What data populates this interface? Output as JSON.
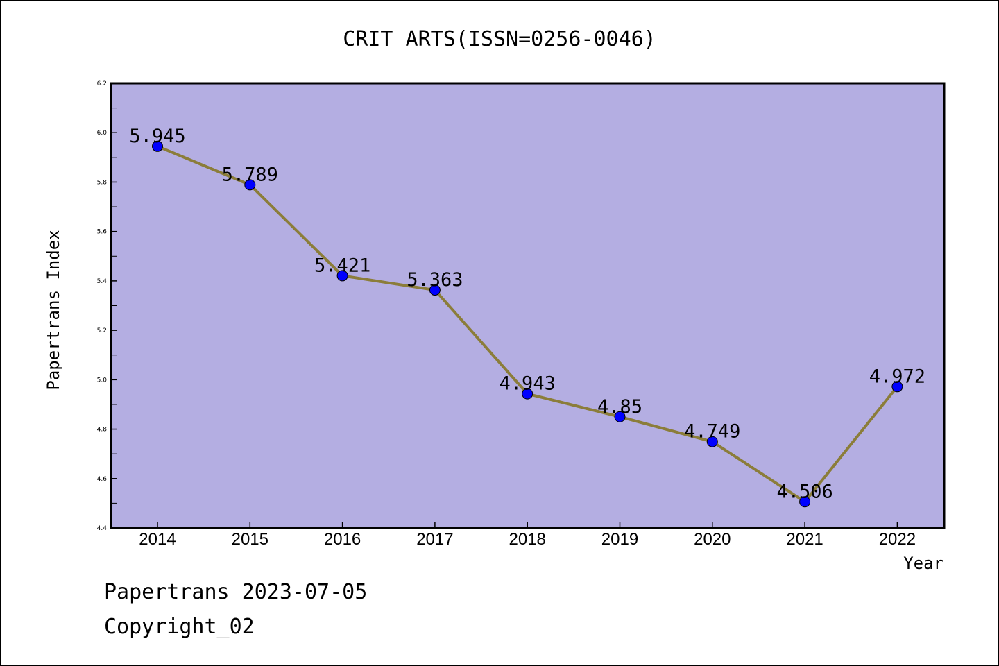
{
  "chart_data": {
    "type": "line",
    "title": "CRIT ARTS(ISSN=0256-0046)",
    "xlabel": "Year",
    "ylabel": "Papertrans Index",
    "categories": [
      "2014",
      "2015",
      "2016",
      "2017",
      "2018",
      "2019",
      "2020",
      "2021",
      "2022"
    ],
    "values": [
      5.945,
      5.789,
      5.421,
      5.363,
      4.943,
      4.85,
      4.749,
      4.506,
      4.972
    ],
    "data_labels": [
      "5.945",
      "5.789",
      "5.421",
      "5.363",
      "4.943",
      "4.85",
      "4.749",
      "4.506",
      "4.972"
    ],
    "ylim": [
      4.4,
      6.2
    ],
    "yticks": [
      "4.4",
      "4.6",
      "4.8",
      "5.0",
      "5.2",
      "5.4",
      "5.6",
      "5.8",
      "6.0",
      "6.2"
    ],
    "grid": false,
    "colors": {
      "plot_background": "#b4aee2",
      "line": "#8b7d3a",
      "marker": "#0000ff"
    }
  },
  "footer": {
    "date_line": "Papertrans 2023-07-05",
    "copyright": "Copyright_02"
  }
}
